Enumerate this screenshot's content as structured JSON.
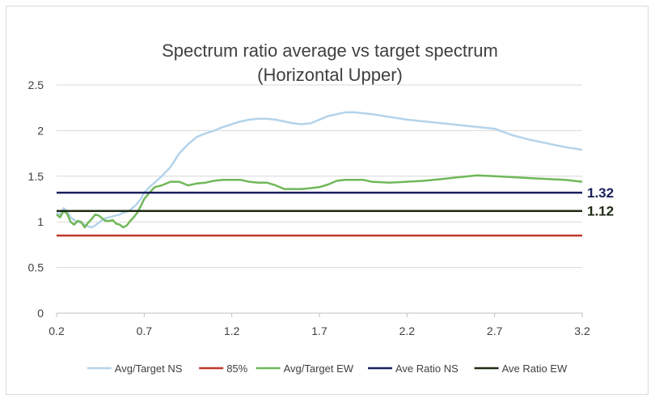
{
  "chart_data": {
    "type": "line",
    "title_line1": "Spectrum ratio average vs target spectrum",
    "title_line2": "(Horizontal Upper)",
    "xlim": [
      0.2,
      3.2
    ],
    "ylim": [
      0,
      2.5
    ],
    "x_ticks": [
      "0.2",
      "0.7",
      "1.2",
      "1.7",
      "2.2",
      "2.7",
      "3.2"
    ],
    "x_tick_values": [
      0.2,
      0.7,
      1.2,
      1.7,
      2.2,
      2.7,
      3.2
    ],
    "y_ticks": [
      "0",
      "0.5",
      "1",
      "1.5",
      "2",
      "2.5"
    ],
    "y_tick_values": [
      0,
      0.5,
      1,
      1.5,
      2,
      2.5
    ],
    "grid": "horizontal",
    "legend_position": "bottom",
    "series": [
      {
        "name": "Avg/Target NS",
        "color": "#b4d3ea",
        "x": [
          0.2,
          0.22,
          0.24,
          0.26,
          0.28,
          0.3,
          0.32,
          0.34,
          0.36,
          0.38,
          0.4,
          0.42,
          0.44,
          0.46,
          0.48,
          0.5,
          0.52,
          0.54,
          0.56,
          0.58,
          0.6,
          0.62,
          0.65,
          0.68,
          0.7,
          0.73,
          0.76,
          0.8,
          0.85,
          0.9,
          0.95,
          1.0,
          1.05,
          1.1,
          1.15,
          1.2,
          1.25,
          1.3,
          1.35,
          1.4,
          1.45,
          1.5,
          1.55,
          1.6,
          1.65,
          1.7,
          1.75,
          1.8,
          1.85,
          1.9,
          1.95,
          2.0,
          2.1,
          2.2,
          2.3,
          2.4,
          2.5,
          2.6,
          2.7,
          2.8,
          2.9,
          3.0,
          3.1,
          3.2
        ],
        "values": [
          1.1,
          1.08,
          1.15,
          1.12,
          1.05,
          1.02,
          1.0,
          0.99,
          0.97,
          0.95,
          0.94,
          0.96,
          0.99,
          1.02,
          1.04,
          1.05,
          1.06,
          1.07,
          1.08,
          1.1,
          1.11,
          1.13,
          1.18,
          1.25,
          1.32,
          1.38,
          1.43,
          1.5,
          1.6,
          1.75,
          1.85,
          1.93,
          1.97,
          2.0,
          2.04,
          2.07,
          2.1,
          2.12,
          2.13,
          2.13,
          2.12,
          2.1,
          2.08,
          2.07,
          2.08,
          2.12,
          2.16,
          2.18,
          2.2,
          2.2,
          2.19,
          2.18,
          2.15,
          2.12,
          2.1,
          2.08,
          2.06,
          2.04,
          2.02,
          1.95,
          1.9,
          1.86,
          1.82,
          1.79
        ]
      },
      {
        "name": "85%",
        "color": "#c0392b",
        "x": [
          0.2,
          3.2
        ],
        "values": [
          0.85,
          0.85
        ]
      },
      {
        "name": "Avg/Target EW",
        "color": "#70b858",
        "x": [
          0.2,
          0.22,
          0.24,
          0.26,
          0.28,
          0.3,
          0.32,
          0.34,
          0.36,
          0.38,
          0.4,
          0.42,
          0.44,
          0.46,
          0.48,
          0.5,
          0.52,
          0.54,
          0.56,
          0.58,
          0.6,
          0.62,
          0.64,
          0.66,
          0.68,
          0.7,
          0.73,
          0.76,
          0.8,
          0.85,
          0.9,
          0.95,
          1.0,
          1.05,
          1.1,
          1.15,
          1.2,
          1.25,
          1.3,
          1.35,
          1.4,
          1.45,
          1.5,
          1.55,
          1.6,
          1.65,
          1.7,
          1.75,
          1.8,
          1.85,
          1.9,
          1.95,
          2.0,
          2.1,
          2.2,
          2.3,
          2.4,
          2.5,
          2.6,
          2.7,
          2.8,
          2.9,
          3.0,
          3.1,
          3.2
        ],
        "values": [
          1.08,
          1.05,
          1.12,
          1.09,
          1.0,
          0.97,
          1.01,
          1.0,
          0.94,
          0.99,
          1.03,
          1.08,
          1.07,
          1.04,
          1.01,
          1.01,
          1.02,
          0.98,
          0.97,
          0.94,
          0.96,
          1.01,
          1.05,
          1.1,
          1.17,
          1.25,
          1.32,
          1.38,
          1.4,
          1.44,
          1.44,
          1.4,
          1.42,
          1.43,
          1.45,
          1.46,
          1.46,
          1.46,
          1.44,
          1.43,
          1.43,
          1.4,
          1.36,
          1.36,
          1.36,
          1.37,
          1.38,
          1.41,
          1.45,
          1.46,
          1.46,
          1.46,
          1.44,
          1.43,
          1.44,
          1.45,
          1.47,
          1.49,
          1.51,
          1.5,
          1.49,
          1.48,
          1.47,
          1.46,
          1.44
        ]
      },
      {
        "name": "Ave Ratio NS",
        "color": "#1a1f5c",
        "x": [
          0.2,
          3.2
        ],
        "values": [
          1.32,
          1.32
        ]
      },
      {
        "name": "Ave Ratio EW",
        "color": "#1e2a14",
        "x": [
          0.2,
          3.2
        ],
        "values": [
          1.12,
          1.12
        ]
      }
    ],
    "annotations": [
      {
        "text": "1.32",
        "y": 1.32,
        "color": "#1a1f5c"
      },
      {
        "text": "1.12",
        "y": 1.12,
        "color": "#1e2a14"
      }
    ]
  }
}
